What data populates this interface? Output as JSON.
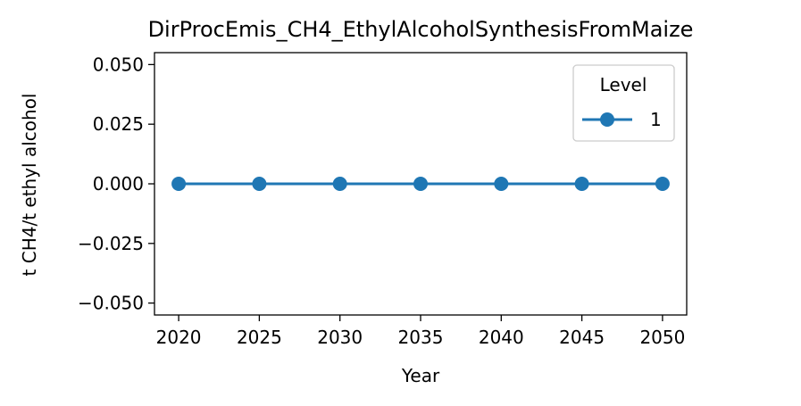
{
  "chart_data": {
    "type": "line",
    "title": "DirProcEmis_CH4_EthylAlcoholSynthesisFromMaize",
    "xlabel": "Year",
    "ylabel": "t CH4/t ethyl alcohol",
    "x": [
      2020,
      2025,
      2030,
      2035,
      2040,
      2045,
      2050
    ],
    "xlim": [
      2018.5,
      2051.5
    ],
    "ylim": [
      -0.055,
      0.055
    ],
    "x_ticks": [
      "2020",
      "2025",
      "2030",
      "2035",
      "2040",
      "2045",
      "2050"
    ],
    "y_ticks": [
      "0.050",
      "0.025",
      "0.000",
      "−0.025",
      "−0.050"
    ],
    "y_tick_values": [
      0.05,
      0.025,
      0.0,
      -0.025,
      -0.05
    ],
    "series": [
      {
        "name": "1",
        "values": [
          0,
          0,
          0,
          0,
          0,
          0,
          0
        ],
        "color": "#1f77b4",
        "marker": "circle"
      }
    ],
    "legend": {
      "title": "Level",
      "position": "top-right"
    },
    "grid": false
  }
}
